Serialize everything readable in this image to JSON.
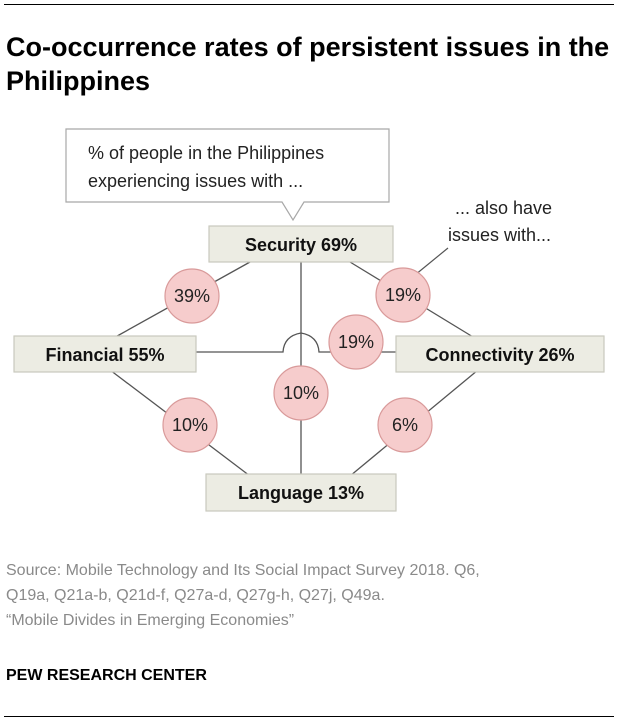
{
  "title": "Co-occurrence rates of persistent issues in the Philippines",
  "callout": {
    "line1": "% of people in the Philippines",
    "line2": "experiencing issues with ..."
  },
  "also_note": {
    "line1": "... also have",
    "line2": "issues with..."
  },
  "nodes": {
    "security": "Security 69%",
    "financial": "Financial 55%",
    "connectivity": "Connectivity 26%",
    "language": "Language 13%"
  },
  "links": {
    "security_financial": "39%",
    "security_connectivity": "19%",
    "financial_connectivity": "19%",
    "security_language": "10%",
    "financial_language": "10%",
    "connectivity_language": "6%"
  },
  "source": {
    "line1": "Source: Mobile Technology and Its Social Impact Survey 2018. Q6,",
    "line2": "Q19a, Q21a-b, Q21d-f, Q27a-d, Q27g-h, Q27j, Q49a.",
    "line3": "“Mobile Divides in Emerging Economies”"
  },
  "brand": "PEW RESEARCH CENTER",
  "colors": {
    "node_fill": "#ecece3",
    "node_stroke": "#c9c9bd",
    "bubble_fill": "#f6cccc",
    "bubble_stroke": "#d99a9a",
    "line": "#555555",
    "source_text": "#8a8a8a"
  }
}
